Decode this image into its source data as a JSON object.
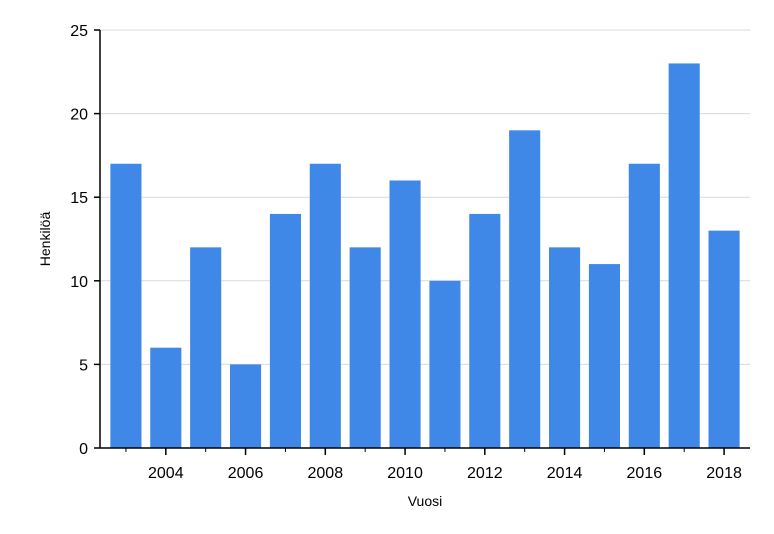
{
  "chart_data": {
    "type": "bar",
    "title": "",
    "xlabel": "Vuosi",
    "ylabel": "Henkilöä",
    "categories": [
      2003,
      2004,
      2005,
      2006,
      2007,
      2008,
      2009,
      2010,
      2011,
      2012,
      2013,
      2014,
      2015,
      2016,
      2017,
      2018
    ],
    "values": [
      17,
      6,
      12,
      5,
      14,
      17,
      12,
      16,
      10,
      14,
      19,
      12,
      11,
      17,
      23,
      13
    ],
    "xticks": [
      "2004",
      "2006",
      "2008",
      "2010",
      "2012",
      "2014",
      "2016",
      "2018"
    ],
    "yticks": [
      "0",
      "5",
      "10",
      "15",
      "20",
      "25"
    ],
    "ylim": [
      0,
      25
    ],
    "grid": true,
    "legend": "none",
    "bar_color": "#3f88e8"
  }
}
